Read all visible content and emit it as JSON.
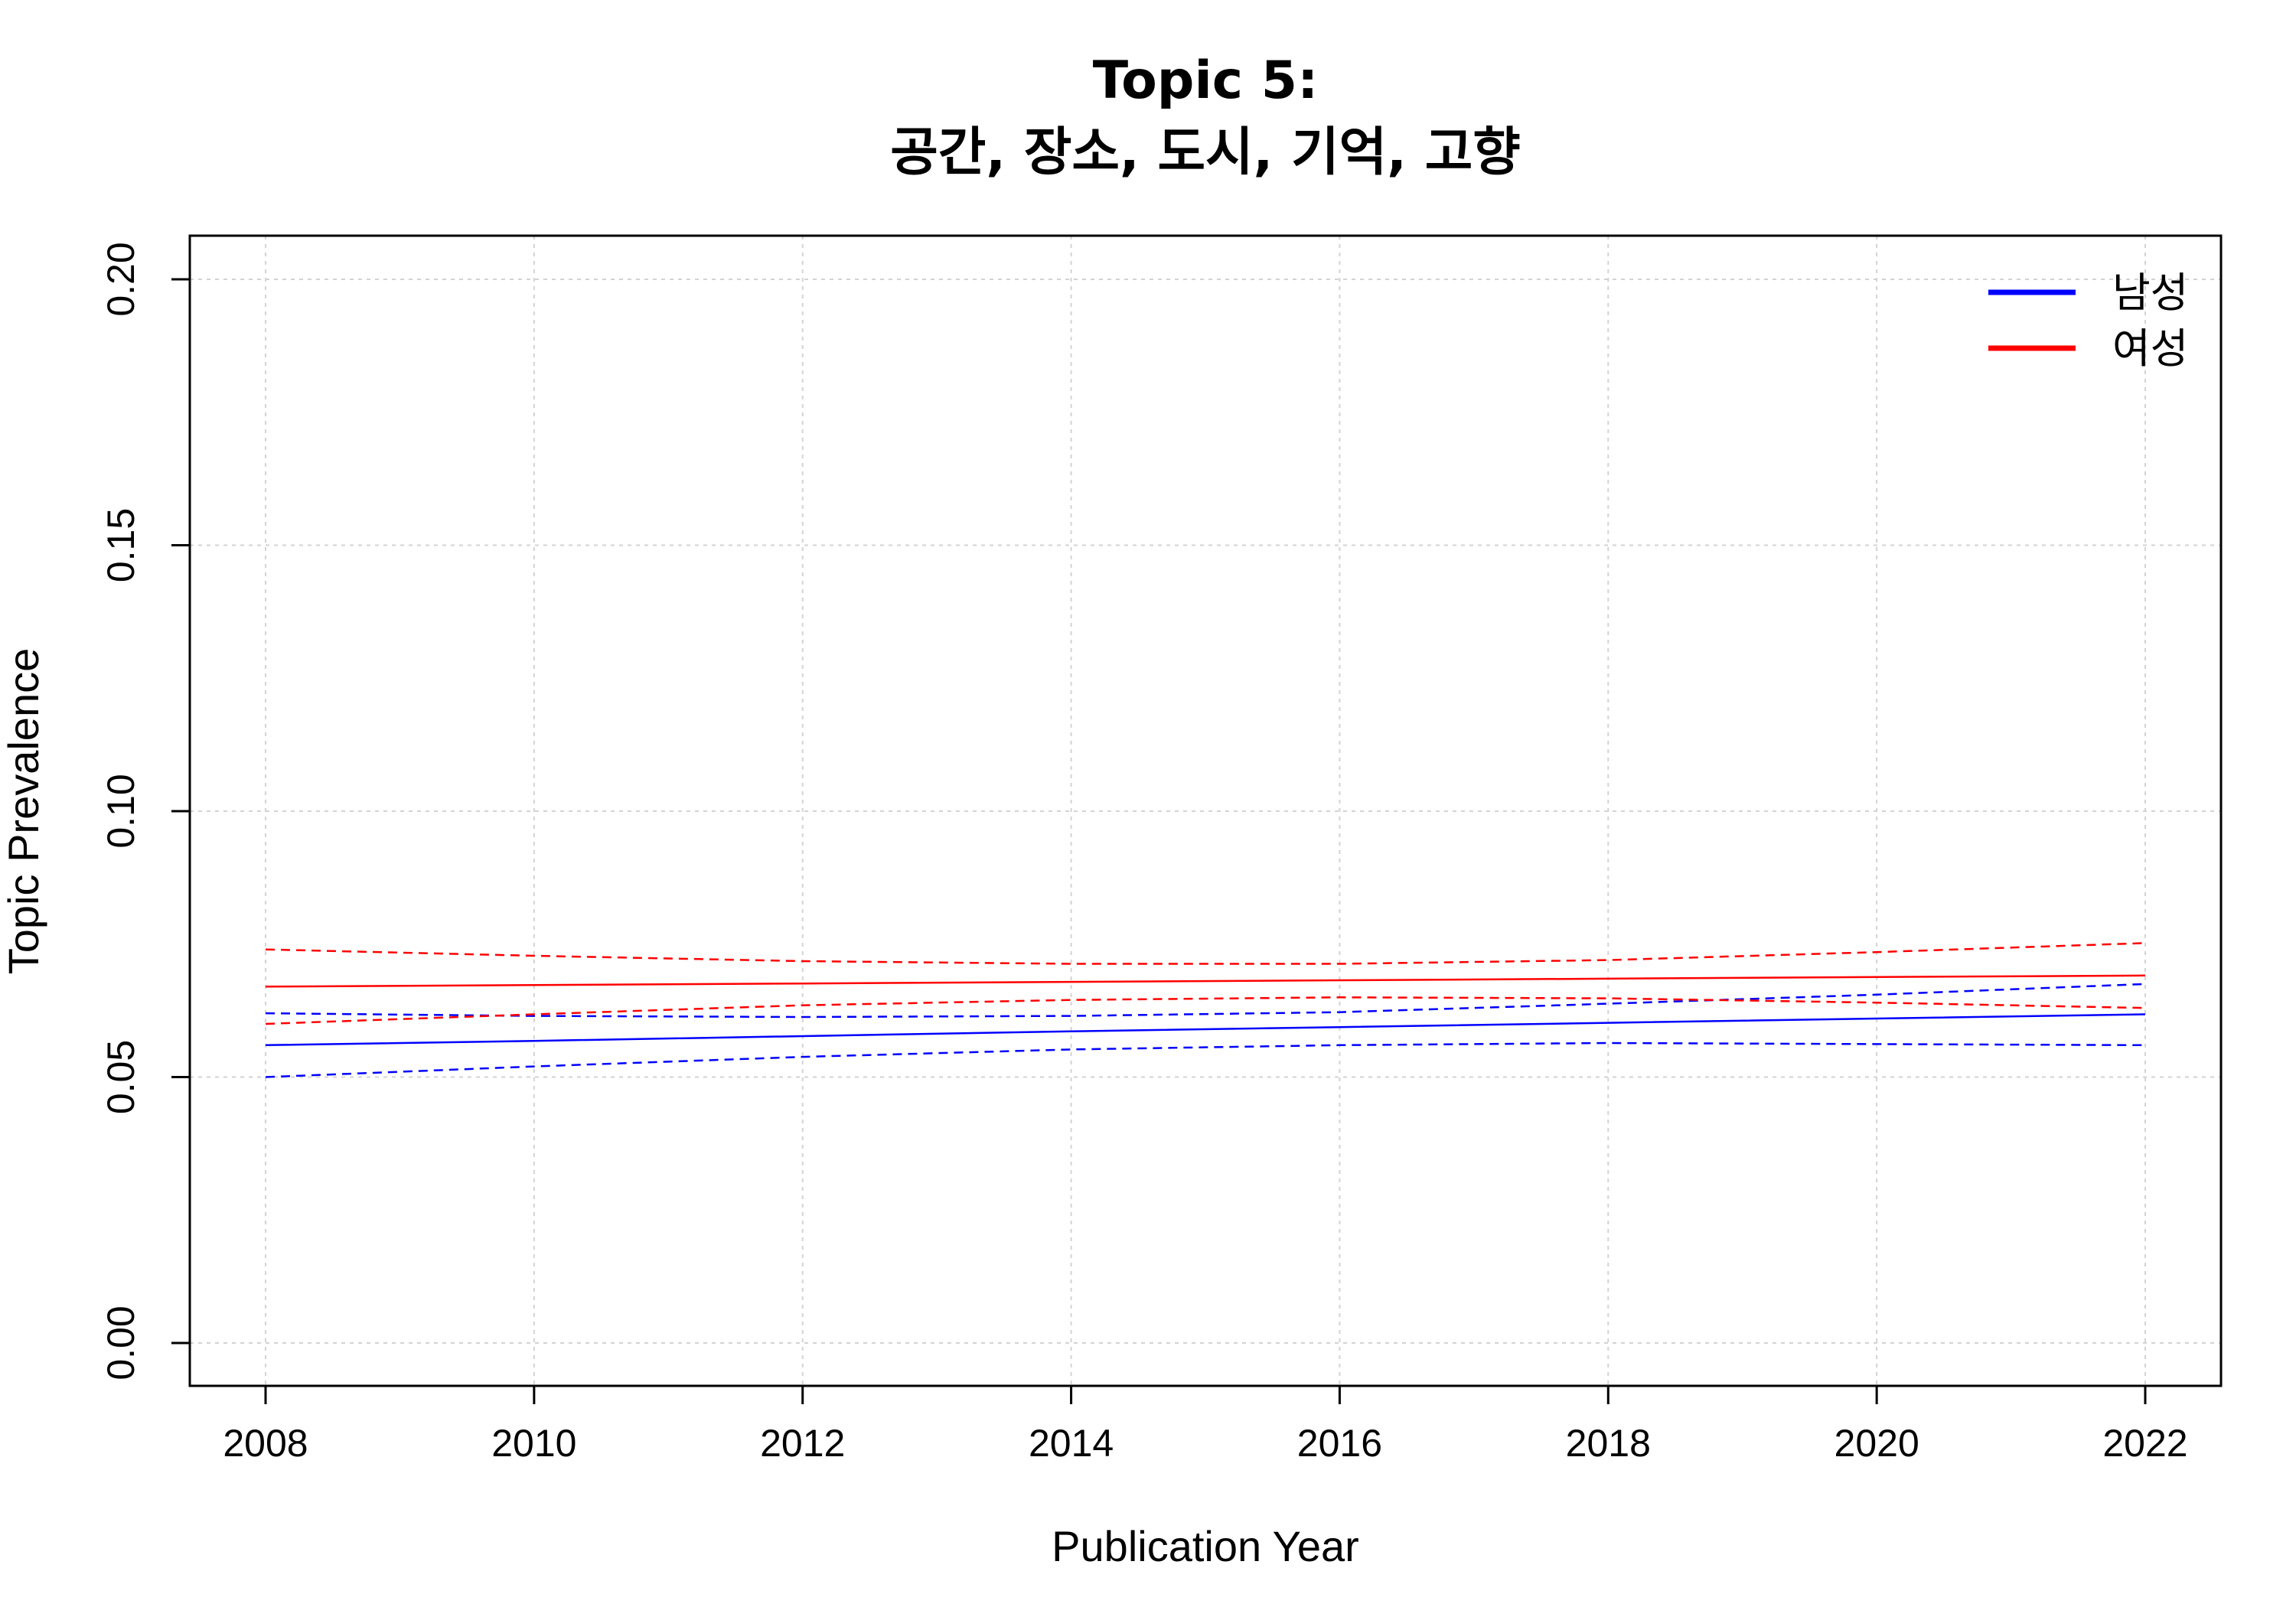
{
  "chart_data": {
    "type": "line",
    "title": "Topic 5:",
    "subtitle": "공간, 장소, 도시, 기억, 고향",
    "xlabel": "Publication Year",
    "ylabel": "Topic Prevalence",
    "xlim": [
      2008,
      2022
    ],
    "ylim": [
      0.0,
      0.2
    ],
    "x_ticks": [
      "2008",
      "2010",
      "2012",
      "2014",
      "2016",
      "2018",
      "2020",
      "2022"
    ],
    "y_ticks": [
      "0.00",
      "0.05",
      "0.10",
      "0.15",
      "0.20"
    ],
    "grid": true,
    "legend_position": "top-right",
    "x": [
      2008,
      2010,
      2012,
      2014,
      2016,
      2018,
      2020,
      2022
    ],
    "series": [
      {
        "name": "남성",
        "color": "#0000ff",
        "values": [
          0.056,
          0.0568,
          0.0577,
          0.0586,
          0.0594,
          0.0602,
          0.061,
          0.0618
        ],
        "lower": [
          0.05,
          0.052,
          0.0538,
          0.0552,
          0.056,
          0.0564,
          0.0562,
          0.056
        ],
        "upper": [
          0.062,
          0.0615,
          0.0613,
          0.0615,
          0.0622,
          0.0638,
          0.0655,
          0.0675
        ]
      },
      {
        "name": "여성",
        "color": "#ff0000",
        "values": [
          0.067,
          0.0673,
          0.0676,
          0.0679,
          0.0682,
          0.0685,
          0.0688,
          0.0691
        ],
        "lower": [
          0.06,
          0.0618,
          0.0635,
          0.0645,
          0.065,
          0.0648,
          0.064,
          0.063
        ],
        "upper": [
          0.074,
          0.0728,
          0.0718,
          0.0713,
          0.0713,
          0.072,
          0.0735,
          0.0752
        ]
      }
    ]
  }
}
